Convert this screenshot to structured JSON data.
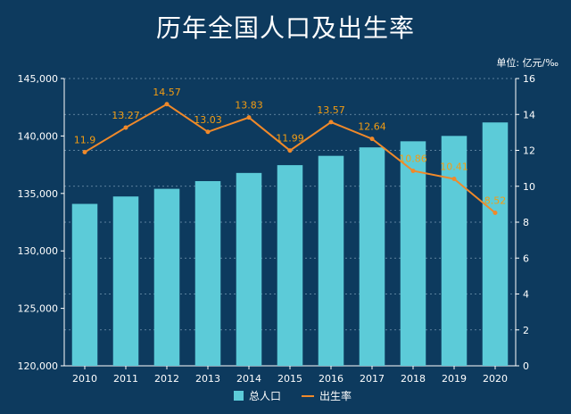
{
  "title": "历年全国人口及出生率",
  "unit_label": "单位: 亿元/‰",
  "colors": {
    "background": "#0d3a5e",
    "bar": "#5ccbd8",
    "line": "#f0892a",
    "label": "#f39c12",
    "grid": "#8fb0c8"
  },
  "chart_data": {
    "type": "bar+line",
    "categories": [
      "2010",
      "2011",
      "2012",
      "2013",
      "2014",
      "2015",
      "2016",
      "2017",
      "2018",
      "2019",
      "2020"
    ],
    "series": [
      {
        "name": "总人口",
        "type": "bar",
        "axis": "left",
        "values": [
          134091,
          134735,
          135404,
          136072,
          136782,
          137462,
          138271,
          139008,
          139538,
          140005,
          141178
        ]
      },
      {
        "name": "出生率",
        "type": "line",
        "axis": "right",
        "values": [
          11.9,
          13.27,
          14.57,
          13.03,
          13.83,
          11.99,
          13.57,
          12.64,
          10.86,
          10.41,
          8.52
        ],
        "labels": [
          "11.9",
          "13.27",
          "14.57",
          "13.03",
          "13.83",
          "11.99",
          "13.57",
          "12.64",
          "10.86",
          "10.41",
          "8.52"
        ]
      }
    ],
    "y_left": {
      "ylim": [
        120000,
        145000
      ],
      "ticks": [
        120000,
        125000,
        130000,
        135000,
        140000,
        145000
      ],
      "tick_labels": [
        "120,000",
        "125,000",
        "130,000",
        "135,000",
        "140,000",
        "145,000"
      ]
    },
    "y_right": {
      "ylim": [
        0,
        16
      ],
      "ticks": [
        0,
        2,
        4,
        6,
        8,
        10,
        12,
        14,
        16
      ],
      "tick_labels": [
        "0",
        "2",
        "4",
        "6",
        "8",
        "10",
        "12",
        "14",
        "16"
      ]
    },
    "grid": true,
    "legend": "bottom-center"
  }
}
